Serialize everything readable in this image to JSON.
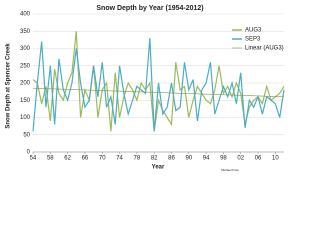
{
  "chart_data": {
    "type": "line",
    "title": "Snow Depth by Year (1954-2012)",
    "x_label": "Year",
    "y_label": "Snow Depth at Spencer Creek",
    "credit": "Michael Fries",
    "categories": [
      "54",
      null,
      null,
      null,
      "58",
      null,
      null,
      null,
      "62",
      null,
      null,
      null,
      "66",
      null,
      null,
      null,
      "70",
      null,
      null,
      null,
      "74",
      null,
      null,
      null,
      "78",
      null,
      null,
      null,
      "82",
      null,
      null,
      null,
      "86",
      null,
      null,
      null,
      "90",
      null,
      null,
      null,
      "94",
      null,
      null,
      null,
      "98",
      null,
      null,
      null,
      "02",
      null,
      null,
      null,
      "06",
      null,
      null,
      null,
      "10",
      null,
      null
    ],
    "series": [
      {
        "name": "AUG3",
        "color": "#9bbb59",
        "values": [
          210,
          200,
          140,
          190,
          90,
          240,
          170,
          150,
          200,
          230,
          350,
          100,
          180,
          150,
          250,
          100,
          180,
          200,
          60,
          230,
          100,
          160,
          200,
          180,
          150,
          200,
          180,
          200,
          60,
          150,
          120,
          100,
          80,
          260,
          180,
          190,
          100,
          150,
          190,
          170,
          150,
          140,
          180,
          250,
          170,
          190,
          160,
          200,
          170,
          80,
          130,
          150,
          160,
          140,
          190,
          150,
          160,
          170,
          190
        ]
      },
      {
        "name": "SEP3",
        "color": "#4bacc6",
        "values": [
          60,
          200,
          320,
          130,
          250,
          80,
          270,
          180,
          150,
          200,
          300,
          200,
          130,
          150,
          250,
          160,
          260,
          130,
          160,
          80,
          250,
          170,
          110,
          150,
          190,
          180,
          170,
          330,
          60,
          200,
          110,
          130,
          200,
          120,
          130,
          260,
          180,
          210,
          90,
          180,
          200,
          260,
          110,
          150,
          190,
          160,
          200,
          140,
          230,
          70,
          150,
          130,
          160,
          110,
          160,
          150,
          140,
          100,
          180
        ]
      }
    ],
    "trendline": {
      "name": "Linear (AUG3)",
      "color": "#7f9a48",
      "values": [
        185,
        160
      ]
    },
    "ylim": [
      0,
      400
    ],
    "yticks": [
      0,
      50,
      100,
      150,
      200,
      250,
      300,
      350,
      400
    ],
    "grid": true
  }
}
